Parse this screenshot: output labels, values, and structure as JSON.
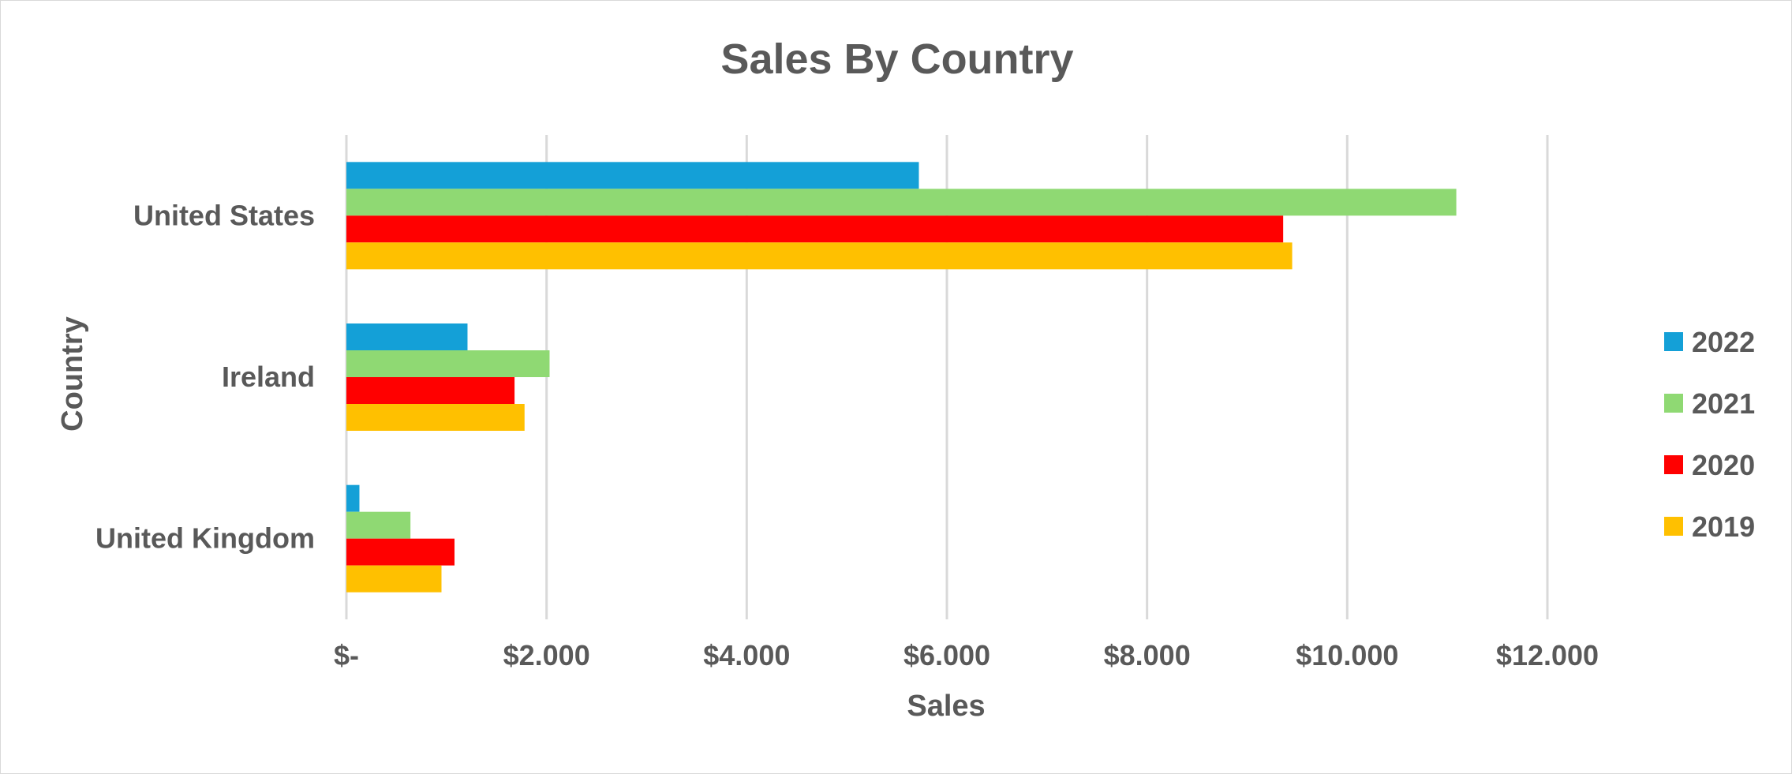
{
  "chart_data": {
    "type": "bar",
    "orientation": "horizontal",
    "title": "Sales By Country",
    "xlabel": "Sales",
    "ylabel": "Country",
    "categories": [
      "United States",
      "Ireland",
      "United Kingdom"
    ],
    "xlim": [
      0,
      12000
    ],
    "x_ticks": [
      0,
      2000,
      4000,
      6000,
      8000,
      10000,
      12000
    ],
    "x_tick_labels": [
      "$-",
      "$2.000",
      "$4.000",
      "$6.000",
      "$8.000",
      "$10.000",
      "$12.000"
    ],
    "grid": true,
    "legend_position": "right",
    "series": [
      {
        "name": "2022",
        "color": "#14A0D7",
        "values": [
          5720,
          1210,
          130
        ]
      },
      {
        "name": "2021",
        "color": "#8FD973",
        "values": [
          11090,
          2030,
          640
        ]
      },
      {
        "name": "2020",
        "color": "#FF0000",
        "values": [
          9360,
          1680,
          1080
        ]
      },
      {
        "name": "2019",
        "color": "#FFC000",
        "values": [
          9450,
          1780,
          950
        ]
      }
    ]
  }
}
